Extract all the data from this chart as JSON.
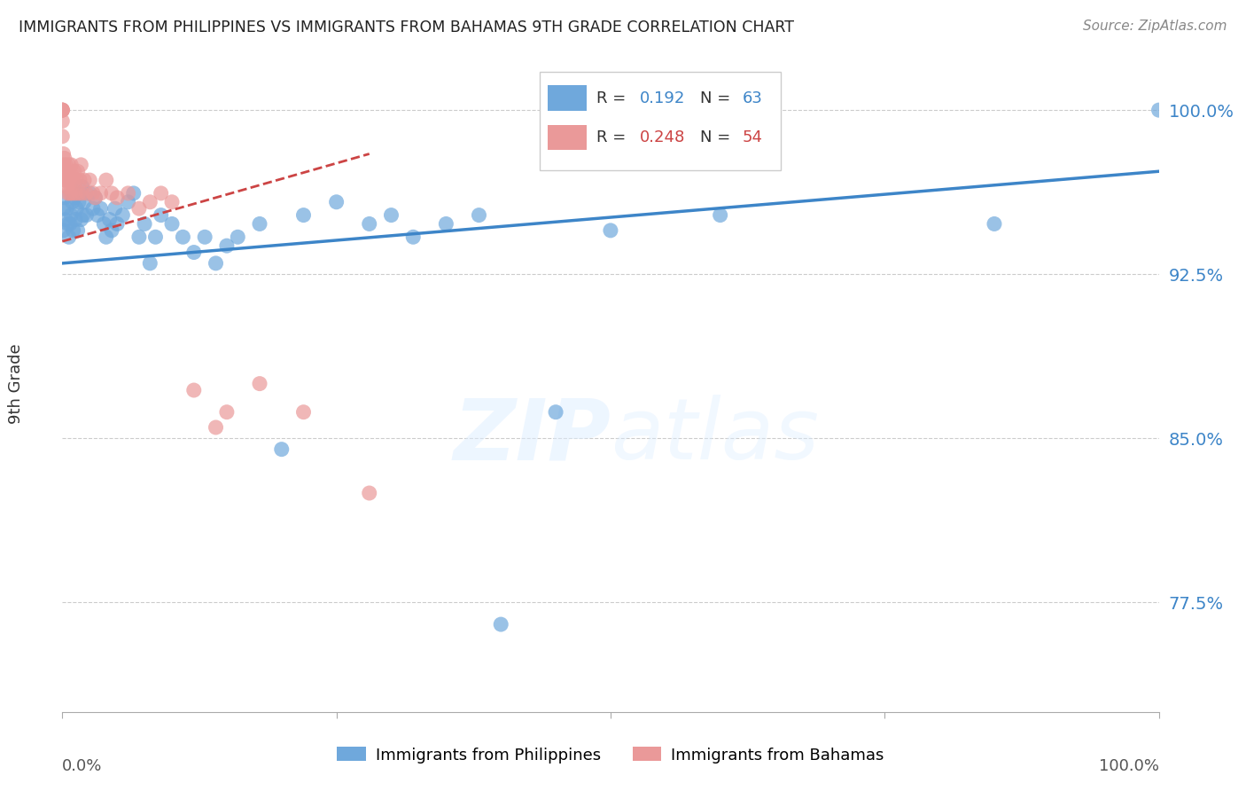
{
  "title": "IMMIGRANTS FROM PHILIPPINES VS IMMIGRANTS FROM BAHAMAS 9TH GRADE CORRELATION CHART",
  "source": "Source: ZipAtlas.com",
  "ylabel": "9th Grade",
  "ytick_labels": [
    "100.0%",
    "92.5%",
    "85.0%",
    "77.5%"
  ],
  "ytick_values": [
    1.0,
    0.925,
    0.85,
    0.775
  ],
  "xlim": [
    0.0,
    1.0
  ],
  "ylim": [
    0.725,
    1.025
  ],
  "r1": 0.192,
  "n1": 63,
  "r2": 0.248,
  "n2": 54,
  "color_philippines": "#6fa8dc",
  "color_bahamas": "#ea9999",
  "color_philippines_line": "#3d85c8",
  "color_bahamas_line": "#cc4444",
  "philippines_x": [
    0.001,
    0.001,
    0.002,
    0.003,
    0.004,
    0.005,
    0.006,
    0.007,
    0.008,
    0.009,
    0.01,
    0.011,
    0.012,
    0.013,
    0.014,
    0.015,
    0.016,
    0.017,
    0.018,
    0.019,
    0.02,
    0.022,
    0.025,
    0.028,
    0.03,
    0.032,
    0.035,
    0.038,
    0.04,
    0.043,
    0.045,
    0.048,
    0.05,
    0.055,
    0.06,
    0.065,
    0.07,
    0.075,
    0.08,
    0.085,
    0.09,
    0.1,
    0.11,
    0.12,
    0.13,
    0.14,
    0.15,
    0.16,
    0.18,
    0.2,
    0.22,
    0.25,
    0.28,
    0.3,
    0.32,
    0.35,
    0.38,
    0.4,
    0.45,
    0.5,
    0.6,
    0.85,
    1.0
  ],
  "philippines_y": [
    0.955,
    0.945,
    0.96,
    0.95,
    0.955,
    0.948,
    0.942,
    0.948,
    0.952,
    0.958,
    0.945,
    0.96,
    0.95,
    0.955,
    0.945,
    0.958,
    0.962,
    0.95,
    0.965,
    0.952,
    0.958,
    0.952,
    0.962,
    0.955,
    0.96,
    0.952,
    0.955,
    0.948,
    0.942,
    0.95,
    0.945,
    0.955,
    0.948,
    0.952,
    0.958,
    0.962,
    0.942,
    0.948,
    0.93,
    0.942,
    0.952,
    0.948,
    0.942,
    0.935,
    0.942,
    0.93,
    0.938,
    0.942,
    0.948,
    0.845,
    0.952,
    0.958,
    0.948,
    0.952,
    0.942,
    0.948,
    0.952,
    0.765,
    0.862,
    0.945,
    0.952,
    0.948,
    1.0
  ],
  "bahamas_x": [
    0.0,
    0.0,
    0.0,
    0.0,
    0.0,
    0.0,
    0.001,
    0.001,
    0.001,
    0.002,
    0.002,
    0.003,
    0.003,
    0.004,
    0.004,
    0.005,
    0.005,
    0.006,
    0.006,
    0.007,
    0.007,
    0.008,
    0.008,
    0.009,
    0.009,
    0.01,
    0.011,
    0.012,
    0.013,
    0.014,
    0.015,
    0.016,
    0.017,
    0.018,
    0.02,
    0.022,
    0.025,
    0.028,
    0.03,
    0.035,
    0.04,
    0.045,
    0.05,
    0.06,
    0.07,
    0.08,
    0.09,
    0.1,
    0.12,
    0.14,
    0.15,
    0.18,
    0.22,
    0.28
  ],
  "bahamas_y": [
    1.0,
    1.0,
    1.0,
    1.0,
    0.995,
    0.988,
    0.975,
    0.98,
    0.968,
    0.978,
    0.972,
    0.968,
    0.975,
    0.972,
    0.965,
    0.97,
    0.962,
    0.968,
    0.975,
    0.97,
    0.962,
    0.968,
    0.975,
    0.97,
    0.962,
    0.968,
    0.972,
    0.962,
    0.968,
    0.972,
    0.962,
    0.968,
    0.975,
    0.962,
    0.968,
    0.962,
    0.968,
    0.962,
    0.96,
    0.962,
    0.968,
    0.962,
    0.96,
    0.962,
    0.955,
    0.958,
    0.962,
    0.958,
    0.872,
    0.855,
    0.862,
    0.875,
    0.862,
    0.825
  ]
}
